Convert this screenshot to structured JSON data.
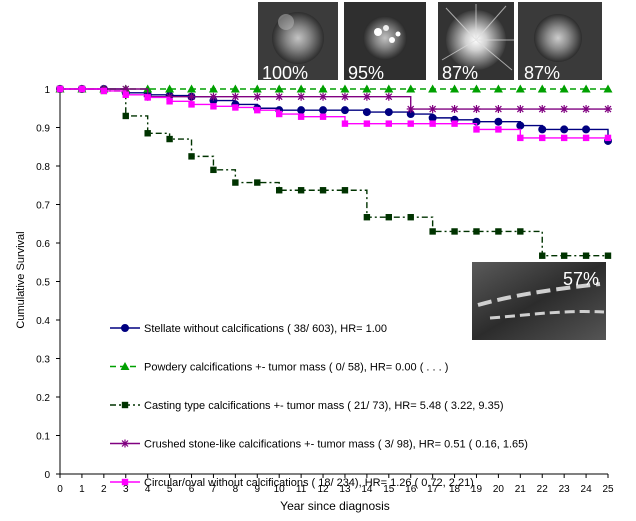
{
  "chart_data": {
    "type": "line",
    "title": "",
    "xlabel": "Year since diagnosis",
    "ylabel": "Cumulative Survival",
    "xlim": [
      0,
      25
    ],
    "ylim": [
      0,
      1
    ],
    "xticks": [
      "0",
      "1",
      "2",
      "3",
      "4",
      "5",
      "6",
      "7",
      "8",
      "9",
      "10",
      "11",
      "12",
      "13",
      "14",
      "15",
      "16",
      "17",
      "18",
      "19",
      "20",
      "21",
      "22",
      "23",
      "24",
      "25"
    ],
    "yticks": [
      "0",
      "0.1",
      "0.2",
      "0.3",
      "0.4",
      "0.5",
      "0.6",
      "0.7",
      "0.8",
      "0.9",
      "1"
    ],
    "grid": false,
    "series": [
      {
        "name": "Stellate without calcifications ( 38/ 603), HR= 1.00",
        "color": "#000080",
        "line": "solid",
        "marker": "circle",
        "values": [
          1,
          1,
          1,
          0.99,
          0.985,
          0.983,
          0.98,
          0.97,
          0.96,
          0.95,
          0.945,
          0.945,
          0.945,
          0.945,
          0.94,
          0.94,
          0.935,
          0.925,
          0.92,
          0.915,
          0.915,
          0.905,
          0.895,
          0.895,
          0.895,
          0.865
        ]
      },
      {
        "name": "Powdery calcifications +- tumor mass ( 0/ 58), HR= 0.00 ( . . . )",
        "color": "#00A000",
        "line": "dashed",
        "marker": "triangle",
        "values": [
          1,
          1,
          1,
          1,
          1,
          1,
          1,
          1,
          1,
          1,
          1,
          1,
          1,
          1,
          1,
          1,
          1,
          1,
          1,
          1,
          1,
          1,
          1,
          1,
          1,
          1
        ]
      },
      {
        "name": "Casting type calcifications +- tumor mass ( 21/ 73), HR= 5.48 ( 3.22, 9.35)",
        "color": "#003300",
        "line": "dashdot",
        "marker": "square",
        "values": [
          1,
          1,
          0.995,
          0.93,
          0.885,
          0.87,
          0.825,
          0.79,
          0.757,
          0.757,
          0.737,
          0.737,
          0.737,
          0.737,
          0.667,
          0.667,
          0.667,
          0.63,
          0.63,
          0.63,
          0.63,
          0.63,
          0.567,
          0.567,
          0.567,
          0.567
        ]
      },
      {
        "name": "Crushed stone-like calcifications +- tumor mass ( 3/ 98), HR= 0.51 ( 0.16, 1.65)",
        "color": "#800080",
        "line": "solid",
        "marker": "star",
        "values": [
          1,
          1,
          1,
          1,
          0.98,
          0.98,
          0.98,
          0.98,
          0.98,
          0.98,
          0.98,
          0.98,
          0.98,
          0.98,
          0.98,
          0.98,
          0.948,
          0.948,
          0.948,
          0.948,
          0.948,
          0.948,
          0.948,
          0.948,
          0.948,
          0.948
        ]
      },
      {
        "name": "Circular/oval without calcifications ( 18/ 234), HR= 1.26 ( 0.72, 2.21)",
        "color": "#FF00FF",
        "line": "solid",
        "marker": "square",
        "values": [
          1,
          1,
          0.995,
          0.985,
          0.978,
          0.968,
          0.96,
          0.955,
          0.952,
          0.945,
          0.935,
          0.928,
          0.928,
          0.91,
          0.91,
          0.91,
          0.91,
          0.91,
          0.91,
          0.895,
          0.895,
          0.873,
          0.873,
          0.873,
          0.873,
          0.873
        ]
      }
    ],
    "legend_position": "bottom-left",
    "annotations": [
      {
        "label": "100%",
        "series": "Powdery calcifications"
      },
      {
        "label": "95%",
        "series": "Crushed stone-like calcifications"
      },
      {
        "label": "87%",
        "series": "Circular/oval without calcifications"
      },
      {
        "label": "87%",
        "series": "Stellate without calcifications"
      },
      {
        "label": "57%",
        "series": "Casting type calcifications"
      }
    ]
  }
}
